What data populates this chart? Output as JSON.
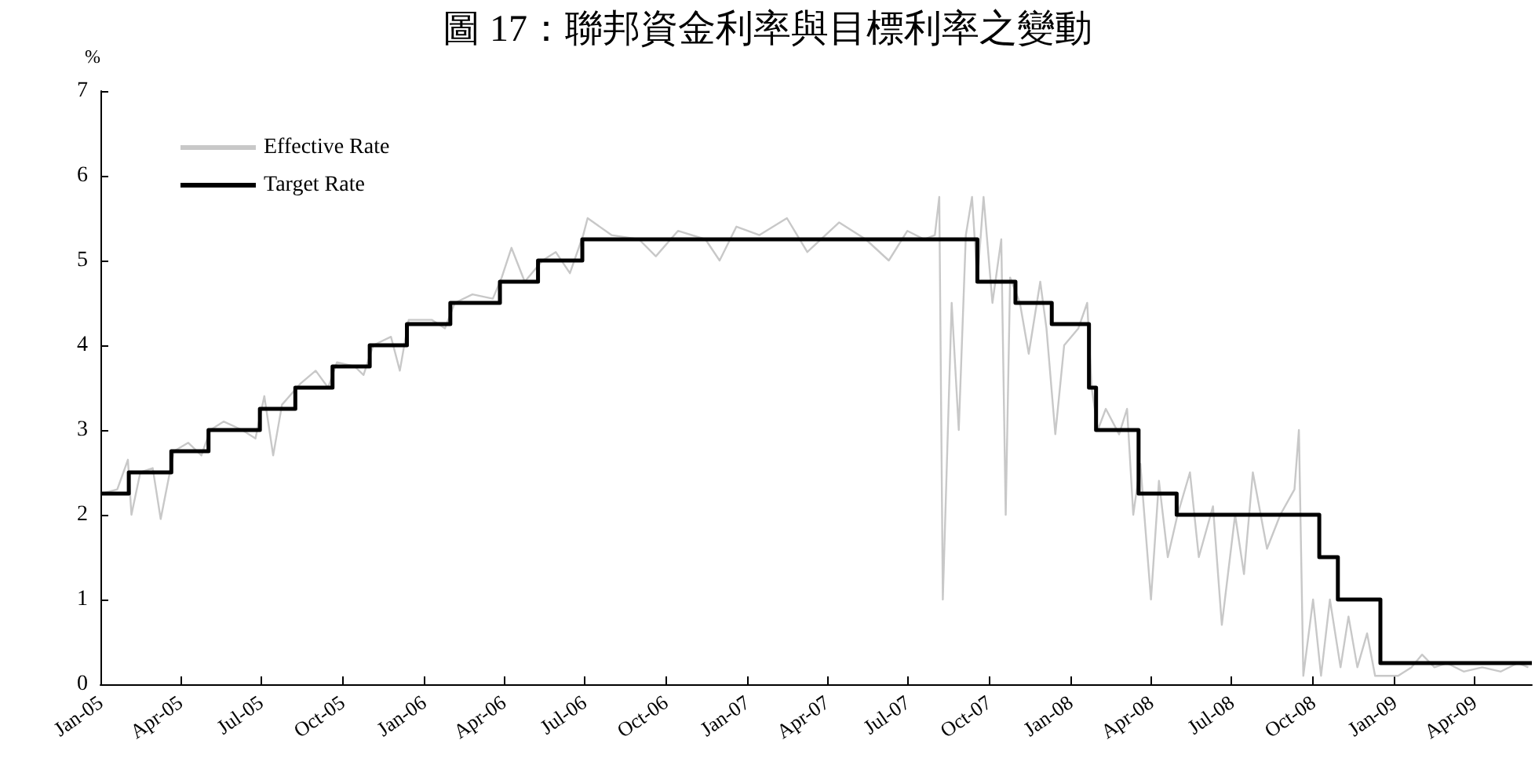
{
  "chart_data": {
    "type": "line",
    "title": "圖 17：聯邦資金利率與目標利率之變動",
    "ylabel": "%",
    "xlim": [
      "2005-01-01",
      "2009-06-05"
    ],
    "ylim": [
      0,
      7
    ],
    "yticks": [
      0,
      1,
      2,
      3,
      4,
      5,
      6,
      7
    ],
    "xticks": [
      {
        "value": "2005-01",
        "label": "Jan-05"
      },
      {
        "value": "2005-04",
        "label": "Apr-05"
      },
      {
        "value": "2005-07",
        "label": "Jul-05"
      },
      {
        "value": "2005-10",
        "label": "Oct-05"
      },
      {
        "value": "2006-01",
        "label": "Jan-06"
      },
      {
        "value": "2006-04",
        "label": "Apr-06"
      },
      {
        "value": "2006-07",
        "label": "Jul-06"
      },
      {
        "value": "2006-10",
        "label": "Oct-06"
      },
      {
        "value": "2007-01",
        "label": "Jan-07"
      },
      {
        "value": "2007-04",
        "label": "Apr-07"
      },
      {
        "value": "2007-07",
        "label": "Jul-07"
      },
      {
        "value": "2007-10",
        "label": "Oct-07"
      },
      {
        "value": "2008-01",
        "label": "Jan-08"
      },
      {
        "value": "2008-04",
        "label": "Apr-08"
      },
      {
        "value": "2008-07",
        "label": "Jul-08"
      },
      {
        "value": "2008-10",
        "label": "Oct-08"
      },
      {
        "value": "2009-01",
        "label": "Jan-09"
      },
      {
        "value": "2009-04",
        "label": "Apr-09"
      }
    ],
    "grid": false,
    "legend": "top left",
    "marker": "none",
    "series": [
      {
        "name": "Effective Rate",
        "color": "#c8c8c8",
        "x": [
          "2005-01-03",
          "2005-01-20",
          "2005-02-01",
          "2005-02-05",
          "2005-02-15",
          "2005-03-01",
          "2005-03-10",
          "2005-03-25",
          "2005-04-10",
          "2005-04-25",
          "2005-05-05",
          "2005-05-20",
          "2005-06-10",
          "2005-06-25",
          "2005-07-05",
          "2005-07-15",
          "2005-07-25",
          "2005-08-15",
          "2005-09-01",
          "2005-09-15",
          "2005-09-25",
          "2005-10-15",
          "2005-10-25",
          "2005-11-05",
          "2005-11-25",
          "2005-12-05",
          "2005-12-15",
          "2006-01-10",
          "2006-01-25",
          "2006-02-05",
          "2006-02-25",
          "2006-03-20",
          "2006-03-30",
          "2006-04-10",
          "2006-04-25",
          "2006-05-15",
          "2006-05-30",
          "2006-06-15",
          "2006-06-30",
          "2006-07-05",
          "2006-08-01",
          "2006-09-01",
          "2006-09-20",
          "2006-10-15",
          "2006-11-15",
          "2006-12-01",
          "2006-12-20",
          "2007-01-15",
          "2007-02-15",
          "2007-03-10",
          "2007-04-15",
          "2007-05-15",
          "2007-06-10",
          "2007-07-01",
          "2007-07-20",
          "2007-08-01",
          "2007-08-06",
          "2007-08-10",
          "2007-08-20",
          "2007-08-28",
          "2007-09-05",
          "2007-09-12",
          "2007-09-18",
          "2007-09-25",
          "2007-10-05",
          "2007-10-15",
          "2007-10-20",
          "2007-10-25",
          "2007-11-05",
          "2007-11-15",
          "2007-11-28",
          "2007-12-05",
          "2007-12-15",
          "2007-12-25",
          "2008-01-10",
          "2008-01-20",
          "2008-01-25",
          "2008-02-01",
          "2008-02-10",
          "2008-02-25",
          "2008-03-05",
          "2008-03-12",
          "2008-03-20",
          "2008-04-01",
          "2008-04-10",
          "2008-04-20",
          "2008-05-01",
          "2008-05-15",
          "2008-05-25",
          "2008-06-10",
          "2008-06-20",
          "2008-07-05",
          "2008-07-15",
          "2008-07-25",
          "2008-08-10",
          "2008-08-25",
          "2008-09-10",
          "2008-09-15",
          "2008-09-20",
          "2008-10-01",
          "2008-10-10",
          "2008-10-20",
          "2008-11-01",
          "2008-11-10",
          "2008-11-20",
          "2008-12-01",
          "2008-12-10",
          "2008-12-20",
          "2009-01-05",
          "2009-01-20",
          "2009-02-01",
          "2009-02-15",
          "2009-03-01",
          "2009-03-20",
          "2009-04-10",
          "2009-05-01",
          "2009-05-20",
          "2009-06-01"
        ],
        "values": [
          2.25,
          2.3,
          2.65,
          2.0,
          2.5,
          2.55,
          1.95,
          2.75,
          2.85,
          2.7,
          3.0,
          3.1,
          3.0,
          2.9,
          3.4,
          2.7,
          3.3,
          3.55,
          3.7,
          3.5,
          3.8,
          3.75,
          3.65,
          4.0,
          4.1,
          3.7,
          4.3,
          4.3,
          4.2,
          4.5,
          4.6,
          4.55,
          4.8,
          5.15,
          4.75,
          5.0,
          5.1,
          4.85,
          5.3,
          5.5,
          5.3,
          5.25,
          5.05,
          5.35,
          5.25,
          5.0,
          5.4,
          5.3,
          5.5,
          5.1,
          5.45,
          5.25,
          5.0,
          5.35,
          5.25,
          5.3,
          5.75,
          1.0,
          4.5,
          3.0,
          5.3,
          5.75,
          4.75,
          5.75,
          4.5,
          5.25,
          2.0,
          4.8,
          4.5,
          3.9,
          4.75,
          4.2,
          2.95,
          4.0,
          4.2,
          4.5,
          3.5,
          3.0,
          3.25,
          2.95,
          3.25,
          2.0,
          2.6,
          1.0,
          2.4,
          1.5,
          2.0,
          2.5,
          1.5,
          2.1,
          0.7,
          2.0,
          1.3,
          2.5,
          1.6,
          2.0,
          2.3,
          3.0,
          0.1,
          1.0,
          0.1,
          1.0,
          0.2,
          0.8,
          0.2,
          0.6,
          0.1,
          0.1,
          0.1,
          0.2,
          0.35,
          0.2,
          0.25,
          0.15,
          0.2,
          0.15,
          0.25,
          0.2
        ]
      },
      {
        "name": "Target Rate",
        "type": "step",
        "color": "#000000",
        "x": [
          "2005-01-01",
          "2005-02-02",
          "2005-03-22",
          "2005-05-03",
          "2005-06-30",
          "2005-08-09",
          "2005-09-20",
          "2005-11-01",
          "2005-12-13",
          "2006-01-31",
          "2006-03-28",
          "2006-05-10",
          "2006-06-29",
          "2007-09-18",
          "2007-10-31",
          "2007-12-11",
          "2008-01-22",
          "2008-01-30",
          "2008-03-18",
          "2008-04-30",
          "2008-10-08",
          "2008-10-29",
          "2008-12-16",
          "2009-06-05"
        ],
        "values": [
          2.25,
          2.5,
          2.75,
          3.0,
          3.25,
          3.5,
          3.75,
          4.0,
          4.25,
          4.5,
          4.75,
          5.0,
          5.25,
          4.75,
          4.5,
          4.25,
          3.5,
          3.0,
          2.25,
          2.0,
          1.5,
          1.0,
          0.25,
          0.25
        ]
      }
    ]
  }
}
